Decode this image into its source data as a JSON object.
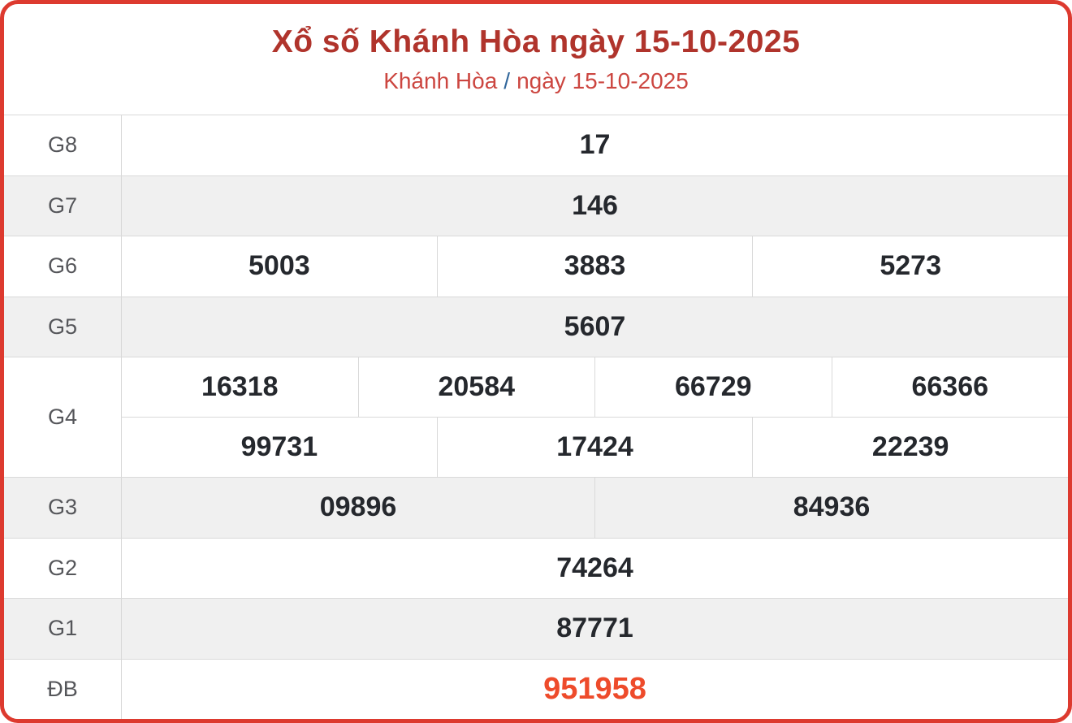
{
  "header": {
    "title": "Xổ số Khánh Hòa ngày 15-10-2025",
    "breadcrumb": {
      "region": "Khánh Hòa",
      "separator": "/",
      "date": "ngày 15-10-2025"
    }
  },
  "results": {
    "rows": [
      {
        "label": "G8",
        "values": [
          "17"
        ]
      },
      {
        "label": "G7",
        "values": [
          "146"
        ]
      },
      {
        "label": "G6",
        "values": [
          "5003",
          "3883",
          "5273"
        ]
      },
      {
        "label": "G5",
        "values": [
          "5607"
        ]
      },
      {
        "label": "G4",
        "values_row1": [
          "16318",
          "20584",
          "66729",
          "66366"
        ],
        "values_row2": [
          "99731",
          "17424",
          "22239"
        ]
      },
      {
        "label": "G3",
        "values": [
          "09896",
          "84936"
        ]
      },
      {
        "label": "G2",
        "values": [
          "74264"
        ]
      },
      {
        "label": "G1",
        "values": [
          "87771"
        ]
      },
      {
        "label": "ĐB",
        "values": [
          "951958"
        ]
      }
    ]
  },
  "colors": {
    "card_border": "#dd3a2f",
    "title_text": "#b0342c",
    "subtitle_text": "#cc4640",
    "separator_text": "#31669b",
    "alt_row_bg": "#f0f0f0",
    "divider": "#d9d9d9",
    "label_text": "#55565a",
    "value_text": "#25282d",
    "jackpot_text": "#ee4b2b"
  }
}
